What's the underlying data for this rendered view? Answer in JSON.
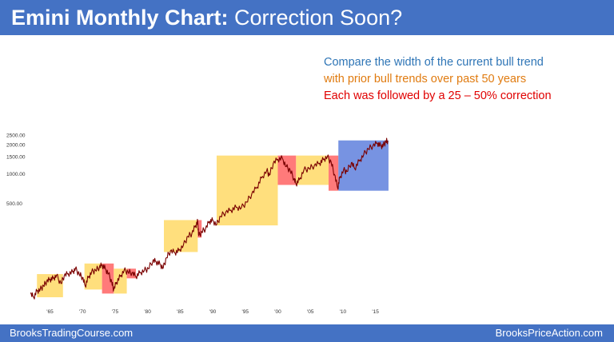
{
  "header": {
    "title_bold": "Emini Monthly Chart:",
    "title_rest": " Correction Soon?"
  },
  "notes": {
    "line1": "Compare the width of the current bull trend",
    "line2": "with prior bull trends over past 50 years",
    "line3": "Each was followed by a 25 – 50% correction"
  },
  "footer": {
    "left": "BrooksTradingCourse.com",
    "right": "BrooksPriceAction.com"
  },
  "colors": {
    "header_bg": "#4472c4",
    "bull_box": "#ffd966",
    "correction_box": "#ff4d4d",
    "current_box": "#4a6fd8",
    "price_line": "#7a0000"
  },
  "chart_data": {
    "type": "line",
    "scale": "log",
    "title": "",
    "xlabel": "",
    "ylabel": "",
    "y_ticks": [
      {
        "value": 500,
        "label": "500.00"
      },
      {
        "value": 1000,
        "label": "1000.00"
      },
      {
        "value": 1500,
        "label": "1500.00"
      },
      {
        "value": 2000,
        "label": "2000.00"
      },
      {
        "value": 2500,
        "label": "2500.00"
      }
    ],
    "x_ticks": [
      {
        "value": 1965,
        "label": "'65"
      },
      {
        "value": 1970,
        "label": "'70"
      },
      {
        "value": 1975,
        "label": "'75"
      },
      {
        "value": 1980,
        "label": "'80"
      },
      {
        "value": 1985,
        "label": "'85"
      },
      {
        "value": 1990,
        "label": "'90"
      },
      {
        "value": 1995,
        "label": "'95"
      },
      {
        "value": 2000,
        "label": "'00"
      },
      {
        "value": 2005,
        "label": "'05"
      },
      {
        "value": 2010,
        "label": "'10"
      },
      {
        "value": 2015,
        "label": "'15"
      }
    ],
    "xlim": [
      1961.5,
      2017.5
    ],
    "ylim": [
      55,
      3000
    ],
    "series": [
      {
        "points": [
          [
            1962.0,
            60
          ],
          [
            1962.5,
            55
          ],
          [
            1963.0,
            64
          ],
          [
            1963.5,
            66
          ],
          [
            1964.0,
            72
          ],
          [
            1964.5,
            80
          ],
          [
            1965.0,
            84
          ],
          [
            1965.5,
            86
          ],
          [
            1966.0,
            92
          ],
          [
            1966.7,
            76
          ],
          [
            1967.2,
            92
          ],
          [
            1967.8,
            96
          ],
          [
            1968.5,
            100
          ],
          [
            1968.9,
            108
          ],
          [
            1969.5,
            95
          ],
          [
            1970.0,
            88
          ],
          [
            1970.4,
            72
          ],
          [
            1970.9,
            88
          ],
          [
            1971.4,
            100
          ],
          [
            1972.0,
            104
          ],
          [
            1972.6,
            112
          ],
          [
            1973.0,
            118
          ],
          [
            1973.5,
            108
          ],
          [
            1974.0,
            96
          ],
          [
            1974.5,
            78
          ],
          [
            1974.8,
            66
          ],
          [
            1975.2,
            78
          ],
          [
            1975.8,
            90
          ],
          [
            1976.4,
            104
          ],
          [
            1977.0,
            100
          ],
          [
            1977.6,
            98
          ],
          [
            1978.2,
            90
          ],
          [
            1978.8,
            98
          ],
          [
            1979.5,
            104
          ],
          [
            1980.1,
            108
          ],
          [
            1980.8,
            130
          ],
          [
            1981.3,
            128
          ],
          [
            1981.9,
            120
          ],
          [
            1982.4,
            110
          ],
          [
            1982.9,
            140
          ],
          [
            1983.5,
            164
          ],
          [
            1984.2,
            158
          ],
          [
            1984.8,
            166
          ],
          [
            1985.5,
            188
          ],
          [
            1986.2,
            232
          ],
          [
            1986.8,
            248
          ],
          [
            1987.4,
            300
          ],
          [
            1987.7,
            330
          ],
          [
            1987.85,
            235
          ],
          [
            1988.3,
            258
          ],
          [
            1988.9,
            278
          ],
          [
            1989.5,
            330
          ],
          [
            1990.0,
            338
          ],
          [
            1990.6,
            305
          ],
          [
            1991.2,
            372
          ],
          [
            1992.0,
            410
          ],
          [
            1992.8,
            430
          ],
          [
            1993.6,
            460
          ],
          [
            1994.4,
            455
          ],
          [
            1995.2,
            520
          ],
          [
            1996.0,
            630
          ],
          [
            1996.8,
            740
          ],
          [
            1997.5,
            920
          ],
          [
            1998.3,
            1100
          ],
          [
            1998.7,
            980
          ],
          [
            1999.3,
            1300
          ],
          [
            2000.0,
            1430
          ],
          [
            2000.7,
            1460
          ],
          [
            2001.3,
            1200
          ],
          [
            2001.9,
            1100
          ],
          [
            2002.5,
            900
          ],
          [
            2002.8,
            800
          ],
          [
            2003.3,
            880
          ],
          [
            2004.0,
            1110
          ],
          [
            2004.8,
            1150
          ],
          [
            2005.6,
            1230
          ],
          [
            2006.4,
            1300
          ],
          [
            2007.0,
            1420
          ],
          [
            2007.6,
            1520
          ],
          [
            2008.2,
            1330
          ],
          [
            2008.7,
            1000
          ],
          [
            2009.2,
            720
          ],
          [
            2009.5,
            920
          ],
          [
            2010.1,
            1110
          ],
          [
            2010.6,
            1070
          ],
          [
            2011.3,
            1320
          ],
          [
            2011.8,
            1150
          ],
          [
            2012.5,
            1370
          ],
          [
            2013.2,
            1600
          ],
          [
            2013.9,
            1830
          ],
          [
            2014.6,
            1960
          ],
          [
            2015.3,
            2100
          ],
          [
            2015.8,
            1960
          ],
          [
            2016.2,
            1980
          ],
          [
            2016.6,
            2180
          ],
          [
            2016.9,
            2220
          ]
        ]
      }
    ],
    "regions": [
      {
        "kind": "bull",
        "x0": 1963.0,
        "x1": 1967.0,
        "y0": 55,
        "y1": 95
      },
      {
        "kind": "bull",
        "x0": 1970.3,
        "x1": 1973.0,
        "y0": 66,
        "y1": 122
      },
      {
        "kind": "correction",
        "x0": 1973.0,
        "x1": 1974.8,
        "y0": 60,
        "y1": 122
      },
      {
        "kind": "bull",
        "x0": 1974.8,
        "x1": 1976.8,
        "y0": 60,
        "y1": 108
      },
      {
        "kind": "correction",
        "x0": 1976.8,
        "x1": 1978.2,
        "y0": 86,
        "y1": 108
      },
      {
        "kind": "bull",
        "x0": 1982.5,
        "x1": 1987.7,
        "y0": 160,
        "y1": 340
      },
      {
        "kind": "correction",
        "x0": 1987.7,
        "x1": 1988.3,
        "y0": 225,
        "y1": 340
      },
      {
        "kind": "bull",
        "x0": 1990.6,
        "x1": 2000.0,
        "y0": 300,
        "y1": 1560
      },
      {
        "kind": "correction",
        "x0": 2000.0,
        "x1": 2002.8,
        "y0": 780,
        "y1": 1560
      },
      {
        "kind": "bull",
        "x0": 2002.8,
        "x1": 2007.8,
        "y0": 780,
        "y1": 1560
      },
      {
        "kind": "correction",
        "x0": 2007.8,
        "x1": 2009.3,
        "y0": 680,
        "y1": 1560
      },
      {
        "kind": "current",
        "x0": 2009.3,
        "x1": 2017.0,
        "y0": 680,
        "y1": 2230
      }
    ]
  }
}
